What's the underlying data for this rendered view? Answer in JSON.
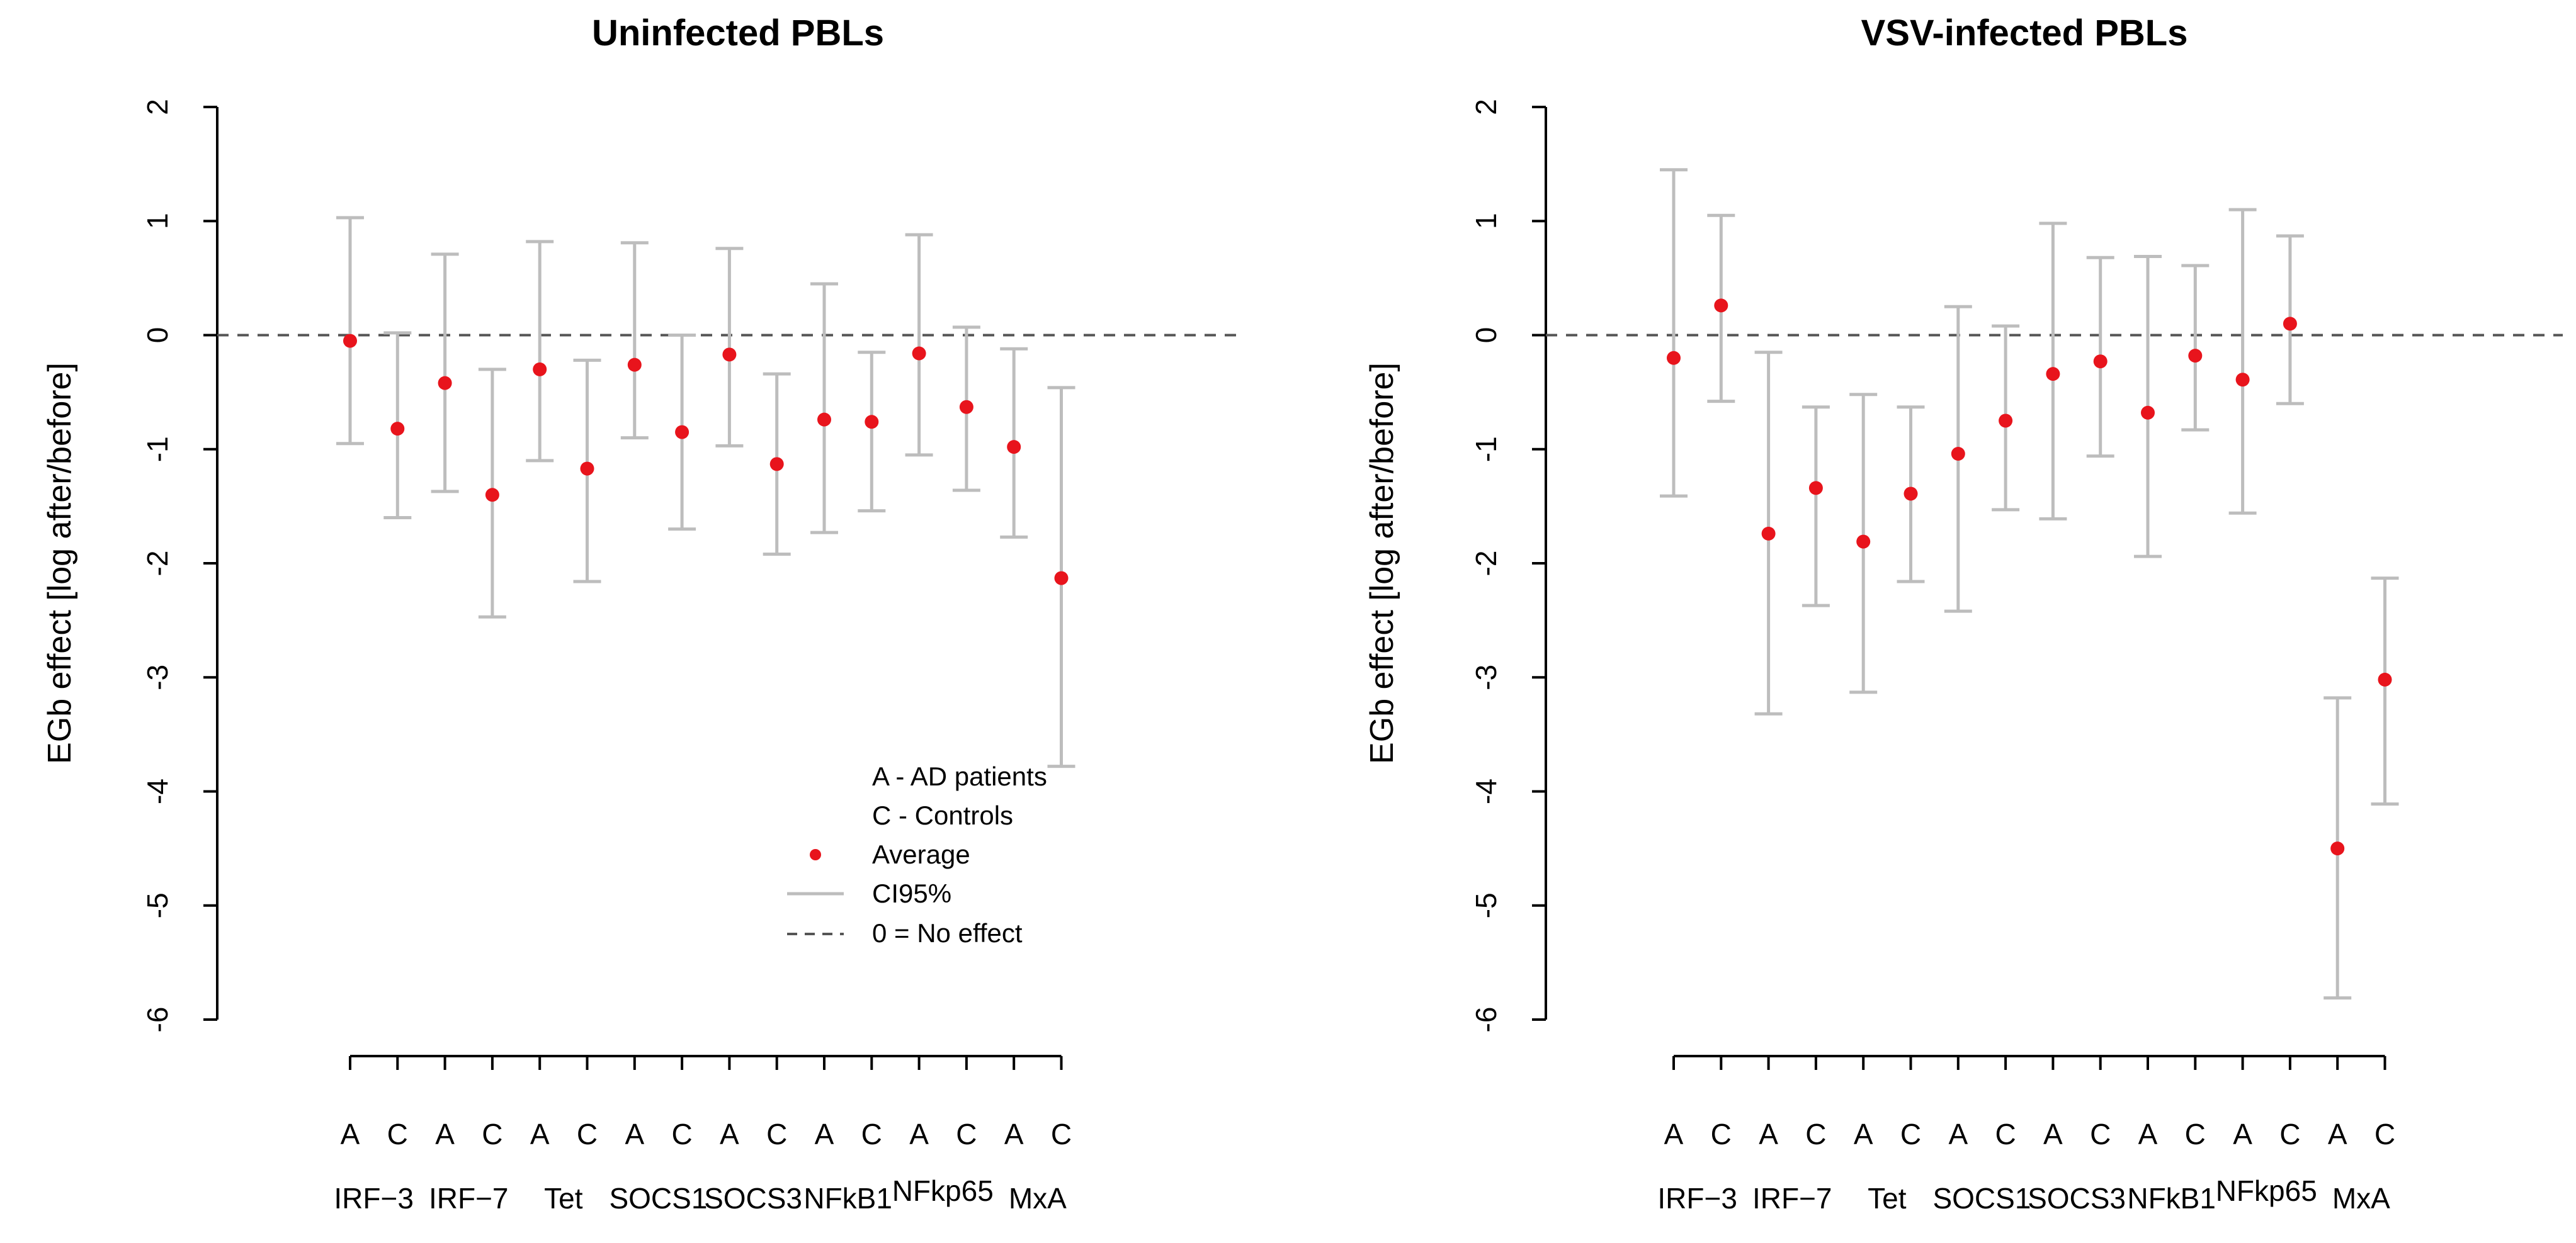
{
  "chart_data": [
    {
      "type": "scatter",
      "title": "Uninfected PBLs",
      "ylabel": "EGb effect  [log after/before]",
      "ylim": [
        -6,
        2
      ],
      "yticks": [
        2,
        1,
        0,
        -1,
        -2,
        -3,
        -4,
        -5,
        -6
      ],
      "groups": [
        "IRF−3",
        "IRF−7",
        "Tet",
        "SOCS1",
        "SOCS3",
        "NFkB1",
        "NFkp65",
        "MxA"
      ],
      "sub_labels": [
        "A",
        "C"
      ],
      "reference_line": 0,
      "points": [
        {
          "group": "IRF−3",
          "sub": "A",
          "mean": -0.05,
          "lo": -0.95,
          "hi": 1.03
        },
        {
          "group": "IRF−3",
          "sub": "C",
          "mean": -0.82,
          "lo": -1.6,
          "hi": 0.02
        },
        {
          "group": "IRF−7",
          "sub": "A",
          "mean": -0.42,
          "lo": -1.37,
          "hi": 0.71
        },
        {
          "group": "IRF−7",
          "sub": "C",
          "mean": -1.4,
          "lo": -2.47,
          "hi": -0.3
        },
        {
          "group": "Tet",
          "sub": "A",
          "mean": -0.3,
          "lo": -1.1,
          "hi": 0.82
        },
        {
          "group": "Tet",
          "sub": "C",
          "mean": -1.17,
          "lo": -2.16,
          "hi": -0.22
        },
        {
          "group": "SOCS1",
          "sub": "A",
          "mean": -0.26,
          "lo": -0.9,
          "hi": 0.81
        },
        {
          "group": "SOCS1",
          "sub": "C",
          "mean": -0.85,
          "lo": -1.7,
          "hi": 0.0
        },
        {
          "group": "SOCS3",
          "sub": "A",
          "mean": -0.17,
          "lo": -0.97,
          "hi": 0.76
        },
        {
          "group": "SOCS3",
          "sub": "C",
          "mean": -1.13,
          "lo": -1.92,
          "hi": -0.34
        },
        {
          "group": "NFkB1",
          "sub": "A",
          "mean": -0.74,
          "lo": -1.73,
          "hi": 0.45
        },
        {
          "group": "NFkB1",
          "sub": "C",
          "mean": -0.76,
          "lo": -1.54,
          "hi": -0.15
        },
        {
          "group": "NFkp65",
          "sub": "A",
          "mean": -0.16,
          "lo": -1.05,
          "hi": 0.88
        },
        {
          "group": "NFkp65",
          "sub": "C",
          "mean": -0.63,
          "lo": -1.36,
          "hi": 0.07
        },
        {
          "group": "MxA",
          "sub": "A",
          "mean": -0.98,
          "lo": -1.77,
          "hi": -0.12
        },
        {
          "group": "MxA",
          "sub": "C",
          "mean": -2.13,
          "lo": -3.78,
          "hi": -0.46
        }
      ],
      "legend": {
        "placement": "bottom-center",
        "text_a": "A - AD patients",
        "text_c": "C - Controls",
        "average": "Average",
        "ci": "CI95%",
        "zero": "0 = No effect"
      }
    },
    {
      "type": "scatter",
      "title": "VSV-infected PBLs",
      "ylabel": "EGb effect  [log after/before]",
      "ylim": [
        -6,
        2
      ],
      "yticks": [
        2,
        1,
        0,
        -1,
        -2,
        -3,
        -4,
        -5,
        -6
      ],
      "groups": [
        "IRF−3",
        "IRF−7",
        "Tet",
        "SOCS1",
        "SOCS3",
        "NFkB1",
        "NFkp65",
        "MxA"
      ],
      "sub_labels": [
        "A",
        "C"
      ],
      "reference_line": 0,
      "points": [
        {
          "group": "IRF−3",
          "sub": "A",
          "mean": -0.2,
          "lo": -1.41,
          "hi": 1.45
        },
        {
          "group": "IRF−3",
          "sub": "C",
          "mean": 0.26,
          "lo": -0.58,
          "hi": 1.05
        },
        {
          "group": "IRF−7",
          "sub": "A",
          "mean": -1.74,
          "lo": -3.32,
          "hi": -0.15
        },
        {
          "group": "IRF−7",
          "sub": "C",
          "mean": -1.34,
          "lo": -2.37,
          "hi": -0.63
        },
        {
          "group": "Tet",
          "sub": "A",
          "mean": -1.81,
          "lo": -3.13,
          "hi": -0.52
        },
        {
          "group": "Tet",
          "sub": "C",
          "mean": -1.39,
          "lo": -2.16,
          "hi": -0.63
        },
        {
          "group": "SOCS1",
          "sub": "A",
          "mean": -1.04,
          "lo": -2.42,
          "hi": 0.25
        },
        {
          "group": "SOCS1",
          "sub": "C",
          "mean": -0.75,
          "lo": -1.53,
          "hi": 0.08
        },
        {
          "group": "SOCS3",
          "sub": "A",
          "mean": -0.34,
          "lo": -1.61,
          "hi": 0.98
        },
        {
          "group": "SOCS3",
          "sub": "C",
          "mean": -0.23,
          "lo": -1.06,
          "hi": 0.68
        },
        {
          "group": "NFkB1",
          "sub": "A",
          "mean": -0.68,
          "lo": -1.94,
          "hi": 0.69
        },
        {
          "group": "NFkB1",
          "sub": "C",
          "mean": -0.18,
          "lo": -0.83,
          "hi": 0.61
        },
        {
          "group": "NFkp65",
          "sub": "A",
          "mean": -0.39,
          "lo": -1.56,
          "hi": 1.1
        },
        {
          "group": "NFkp65",
          "sub": "C",
          "mean": 0.1,
          "lo": -0.6,
          "hi": 0.87
        },
        {
          "group": "MxA",
          "sub": "A",
          "mean": -4.5,
          "lo": -5.81,
          "hi": -3.18
        },
        {
          "group": "MxA",
          "sub": "C",
          "mean": -3.02,
          "lo": -4.11,
          "hi": -2.13
        }
      ]
    }
  ],
  "colors": {
    "point": "#e8141c",
    "ci": "#bdbdbd",
    "reference": "#555555",
    "axis": "#000000"
  }
}
